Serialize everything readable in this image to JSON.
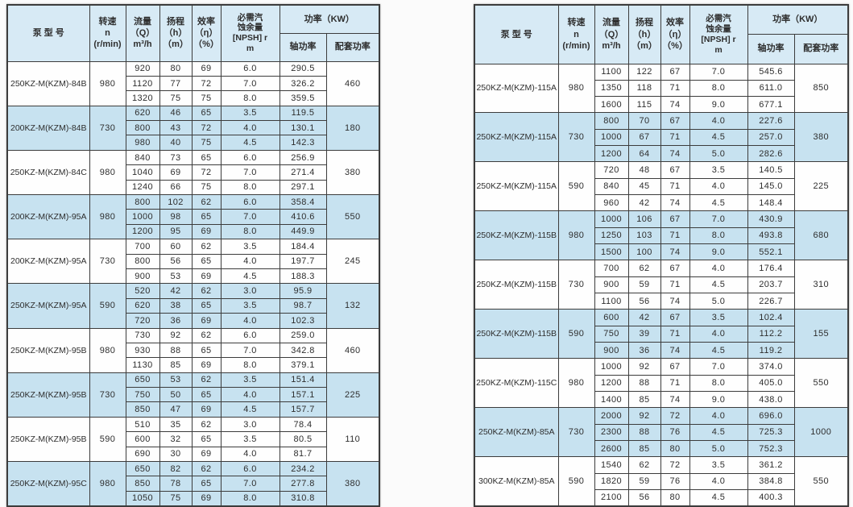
{
  "colors": {
    "page_bg": "#fbfbfb",
    "header_bg": "#d7eaf5",
    "row_alt_bg": "#c7e2f0",
    "border_color": "#3c3c3c",
    "text_color": "#2e2e2e"
  },
  "header": {
    "model": "泵   型   号",
    "speed": "转速\nn\n(r/min)",
    "flow": "流量\n（Q）\nm³/h",
    "head": "扬程\n（h）\n（m）",
    "efficiency": "效率\n（η）\n（%）",
    "npsh": "必需汽\n蚀余量\n[NPSH] r\nm",
    "power_group": "功率（KW）",
    "shaft_power": "轴功率",
    "paired_power": "配套功率"
  },
  "tables": [
    {
      "side": "left",
      "groups": [
        {
          "model": "250KZ-M(KZM)-84B",
          "speed": "980",
          "power": "460",
          "shaded": false,
          "rows": [
            [
              "920",
              "80",
              "69",
              "6.0",
              "290.5"
            ],
            [
              "1120",
              "77",
              "72",
              "7.0",
              "326.2"
            ],
            [
              "1320",
              "75",
              "75",
              "8.0",
              "359.5"
            ]
          ]
        },
        {
          "model": "200KZ-M(KZM)-84B",
          "speed": "730",
          "power": "180",
          "shaded": true,
          "rows": [
            [
              "620",
              "46",
              "65",
              "3.5",
              "119.5"
            ],
            [
              "800",
              "43",
              "72",
              "4.0",
              "130.1"
            ],
            [
              "980",
              "40",
              "75",
              "4.5",
              "142.3"
            ]
          ]
        },
        {
          "model": "250KZ-M(KZM)-84C",
          "speed": "980",
          "power": "380",
          "shaded": false,
          "rows": [
            [
              "840",
              "73",
              "65",
              "6.0",
              "256.9"
            ],
            [
              "1040",
              "69",
              "72",
              "7.0",
              "271.4"
            ],
            [
              "1240",
              "66",
              "75",
              "8.0",
              "297.1"
            ]
          ]
        },
        {
          "model": "200KZ-M(KZM)-95A",
          "speed": "980",
          "power": "550",
          "shaded": true,
          "rows": [
            [
              "800",
              "102",
              "62",
              "6.0",
              "358.4"
            ],
            [
              "1000",
              "98",
              "65",
              "7.0",
              "410.6"
            ],
            [
              "1200",
              "95",
              "69",
              "8.0",
              "449.9"
            ]
          ]
        },
        {
          "model": "200KZ-M(KZM)-95A",
          "speed": "730",
          "power": "245",
          "shaded": false,
          "rows": [
            [
              "700",
              "60",
              "62",
              "3.5",
              "184.4"
            ],
            [
              "800",
              "56",
              "65",
              "4.0",
              "197.7"
            ],
            [
              "900",
              "53",
              "69",
              "4.5",
              "188.3"
            ]
          ]
        },
        {
          "model": "250KZ-M(KZM)-95A",
          "speed": "590",
          "power": "132",
          "shaded": true,
          "rows": [
            [
              "520",
              "42",
              "62",
              "3.0",
              "95.9"
            ],
            [
              "620",
              "38",
              "65",
              "3.5",
              "98.7"
            ],
            [
              "720",
              "36",
              "69",
              "4.0",
              "102.3"
            ]
          ]
        },
        {
          "model": "250KZ-M(KZM)-95B",
          "speed": "980",
          "power": "460",
          "shaded": false,
          "rows": [
            [
              "730",
              "92",
              "62",
              "6.0",
              "259.0"
            ],
            [
              "930",
              "88",
              "65",
              "7.0",
              "342.8"
            ],
            [
              "1130",
              "85",
              "69",
              "8.0",
              "379.1"
            ]
          ]
        },
        {
          "model": "250KZ-M(KZM)-95B",
          "speed": "730",
          "power": "225",
          "shaded": true,
          "rows": [
            [
              "650",
              "53",
              "62",
              "3.5",
              "151.4"
            ],
            [
              "750",
              "50",
              "65",
              "4.0",
              "157.1"
            ],
            [
              "850",
              "47",
              "69",
              "4.5",
              "157.7"
            ]
          ]
        },
        {
          "model": "250KZ-M(KZM)-95B",
          "speed": "590",
          "power": "110",
          "shaded": false,
          "rows": [
            [
              "510",
              "35",
              "62",
              "3.0",
              "78.4"
            ],
            [
              "600",
              "32",
              "65",
              "3.5",
              "80.5"
            ],
            [
              "690",
              "30",
              "69",
              "4.0",
              "81.7"
            ]
          ]
        },
        {
          "model": "250KZ-M(KZM)-95C",
          "speed": "980",
          "power": "380",
          "shaded": true,
          "rows": [
            [
              "650",
              "82",
              "62",
              "6.0",
              "234.2"
            ],
            [
              "850",
              "78",
              "65",
              "7.0",
              "277.8"
            ],
            [
              "1050",
              "75",
              "69",
              "8.0",
              "310.8"
            ]
          ]
        }
      ]
    },
    {
      "side": "right",
      "groups": [
        {
          "model": "250KZ-M(KZM)-115A",
          "speed": "980",
          "power": "850",
          "shaded": false,
          "rows": [
            [
              "1100",
              "122",
              "67",
              "7.0",
              "545.6"
            ],
            [
              "1350",
              "118",
              "71",
              "8.0",
              "611.0"
            ],
            [
              "1600",
              "115",
              "74",
              "9.0",
              "677.1"
            ]
          ]
        },
        {
          "model": "250KZ-M(KZM)-115A",
          "speed": "730",
          "power": "380",
          "shaded": true,
          "rows": [
            [
              "800",
              "70",
              "67",
              "4.0",
              "227.6"
            ],
            [
              "1000",
              "67",
              "71",
              "4.5",
              "257.0"
            ],
            [
              "1200",
              "64",
              "74",
              "5.0",
              "282.6"
            ]
          ]
        },
        {
          "model": "250KZ-M(KZM)-115A",
          "speed": "590",
          "power": "225",
          "shaded": false,
          "rows": [
            [
              "720",
              "48",
              "67",
              "3.5",
              "140.5"
            ],
            [
              "840",
              "45",
              "71",
              "4.0",
              "145.0"
            ],
            [
              "960",
              "42",
              "74",
              "4.5",
              "148.4"
            ]
          ]
        },
        {
          "model": "250KZ-M(KZM)-115B",
          "speed": "980",
          "power": "680",
          "shaded": true,
          "rows": [
            [
              "1000",
              "106",
              "67",
              "7.0",
              "430.9"
            ],
            [
              "1250",
              "103",
              "71",
              "8.0",
              "493.8"
            ],
            [
              "1500",
              "100",
              "74",
              "9.0",
              "552.1"
            ]
          ]
        },
        {
          "model": "250KZ-M(KZM)-115B",
          "speed": "730",
          "power": "310",
          "shaded": false,
          "rows": [
            [
              "700",
              "62",
              "67",
              "4.0",
              "176.4"
            ],
            [
              "900",
              "59",
              "71",
              "4.5",
              "203.7"
            ],
            [
              "1100",
              "56",
              "74",
              "5.0",
              "226.7"
            ]
          ]
        },
        {
          "model": "250KZ-M(KZM)-115B",
          "speed": "590",
          "power": "155",
          "shaded": true,
          "rows": [
            [
              "600",
              "42",
              "67",
              "3.5",
              "102.4"
            ],
            [
              "750",
              "39",
              "71",
              "4.0",
              "112.2"
            ],
            [
              "900",
              "36",
              "74",
              "4.5",
              "119.2"
            ]
          ]
        },
        {
          "model": "250KZ-M(KZM)-115C",
          "speed": "980",
          "power": "550",
          "shaded": false,
          "rows": [
            [
              "1000",
              "92",
              "67",
              "7.0",
              "374.0"
            ],
            [
              "1200",
              "88",
              "71",
              "8.0",
              "405.0"
            ],
            [
              "1400",
              "85",
              "74",
              "9.0",
              "438.0"
            ]
          ]
        },
        {
          "model": "250KZ-M(KZM)-85A",
          "speed": "730",
          "power": "1000",
          "shaded": true,
          "rows": [
            [
              "2000",
              "92",
              "72",
              "4.0",
              "696.0"
            ],
            [
              "2300",
              "88",
              "76",
              "4.5",
              "725.3"
            ],
            [
              "2600",
              "85",
              "80",
              "5.0",
              "752.3"
            ]
          ]
        },
        {
          "model": "300KZ-M(KZM)-85A",
          "speed": "590",
          "power": "550",
          "shaded": false,
          "rows": [
            [
              "1540",
              "62",
              "72",
              "3.5",
              "361.2"
            ],
            [
              "1820",
              "59",
              "76",
              "4.0",
              "384.8"
            ],
            [
              "2100",
              "56",
              "80",
              "4.5",
              "400.3"
            ]
          ]
        }
      ]
    }
  ]
}
